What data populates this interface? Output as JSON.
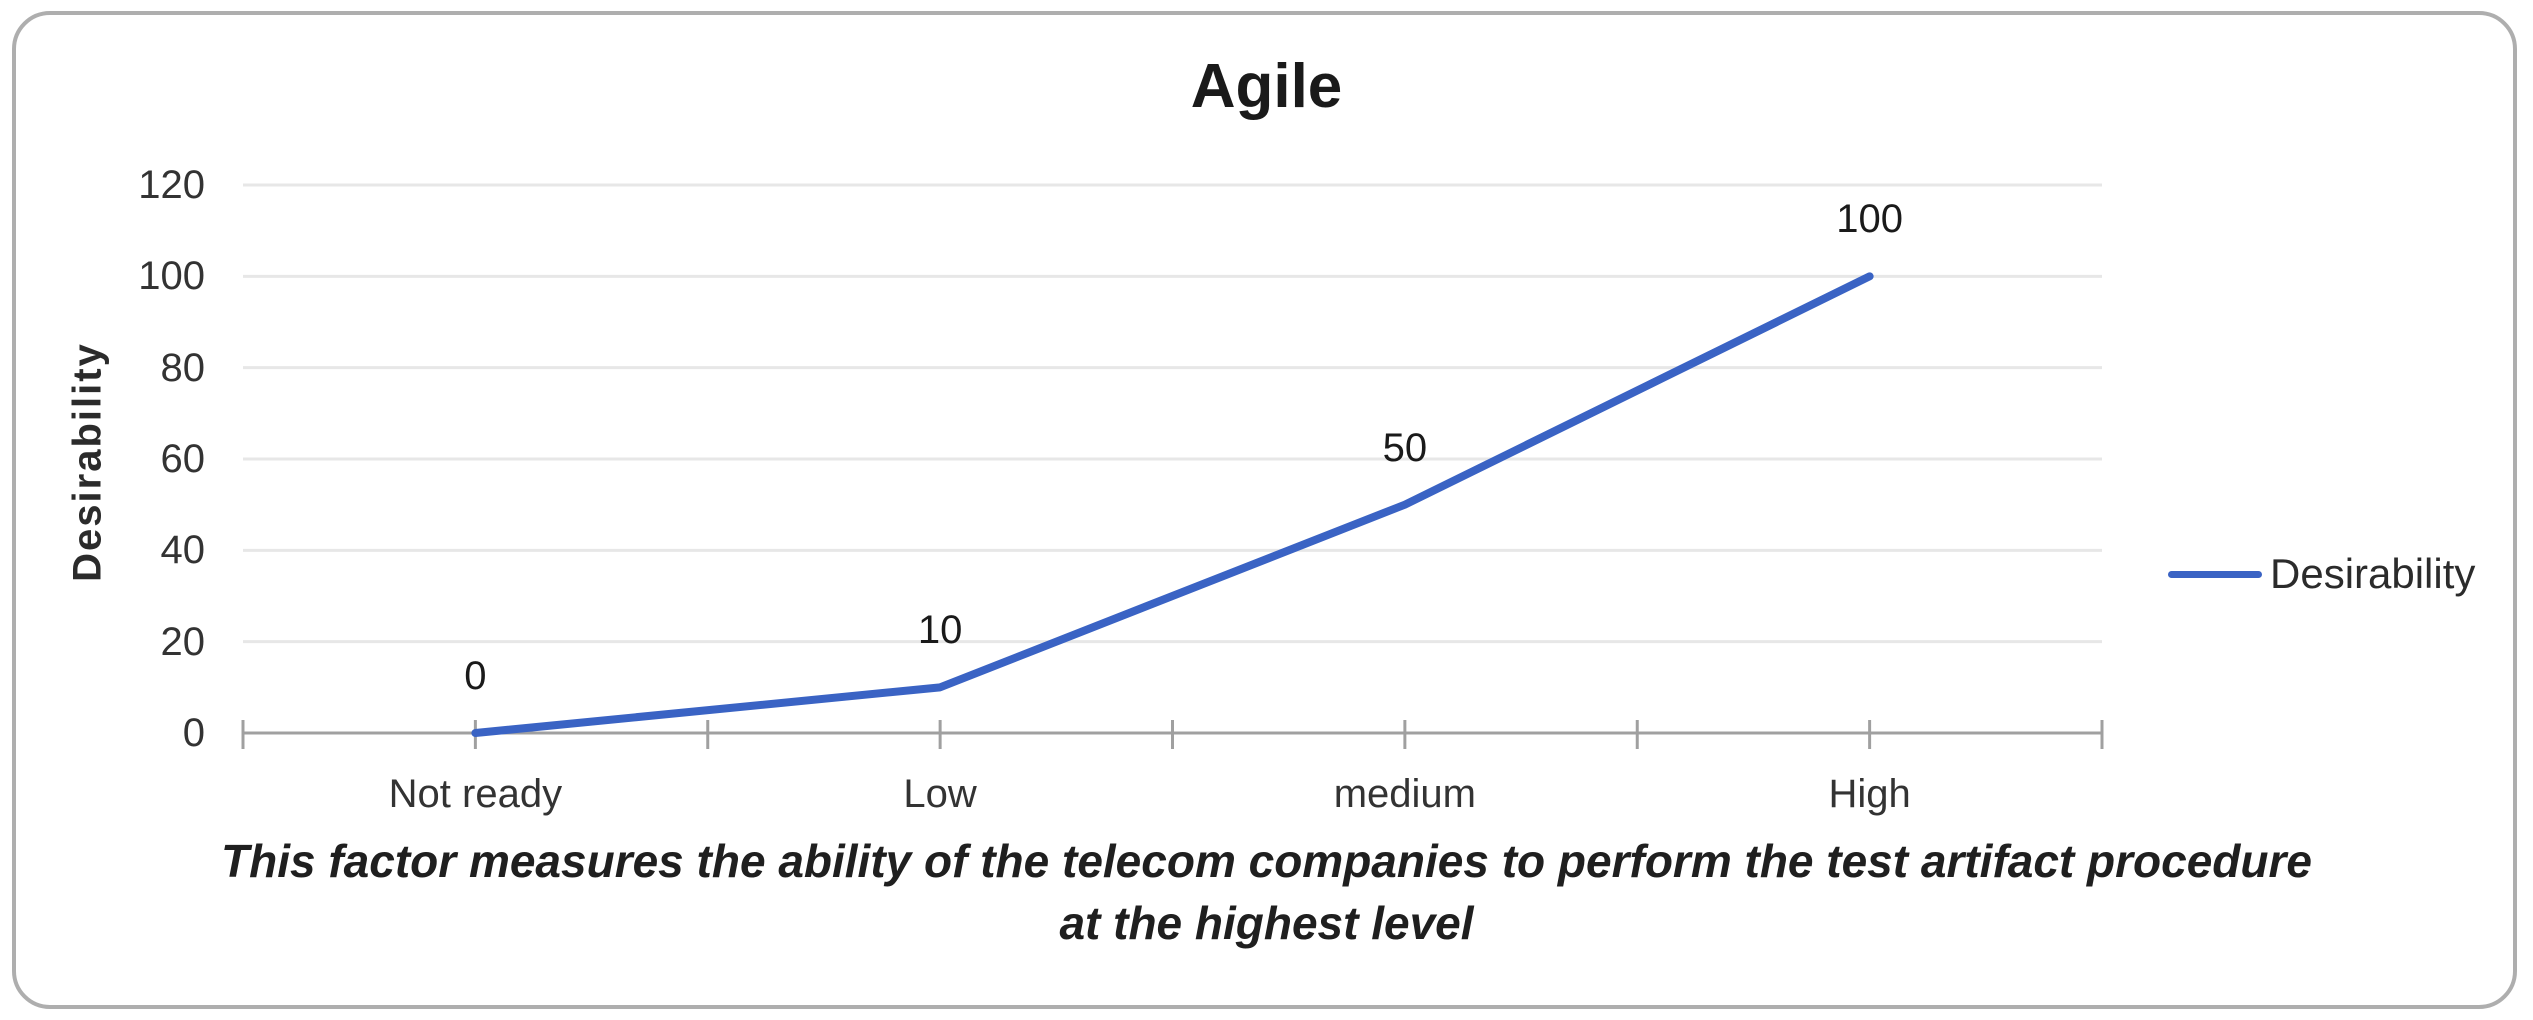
{
  "chart": {
    "title": "Agile",
    "ylabel": "Desirability",
    "legend_label": "Desirability"
  },
  "caption": {
    "line1": "This factor measures the ability of the telecom companies to perform the test artifact procedure",
    "line2": "at the highest level"
  },
  "chart_data": {
    "type": "line",
    "title": "Agile",
    "xlabel": "",
    "ylabel": "Desirability",
    "categories": [
      "Not ready",
      "Low",
      "medium",
      "High"
    ],
    "series": [
      {
        "name": "Desirability",
        "values": [
          0,
          10,
          50,
          100
        ]
      }
    ],
    "data_labels": [
      "0",
      "10",
      "50",
      "100"
    ],
    "data_label_position": "above",
    "ylim": [
      0,
      120
    ],
    "yticks": [
      0,
      20,
      40,
      60,
      80,
      100,
      120
    ],
    "grid": "horizontal",
    "legend_position": "right",
    "colors": {
      "line": "#3a63c4",
      "gridline": "#e7e7e7",
      "axis": "#a0a0a0",
      "tick_text": "#333333",
      "label_text": "#1a1a1a"
    }
  }
}
